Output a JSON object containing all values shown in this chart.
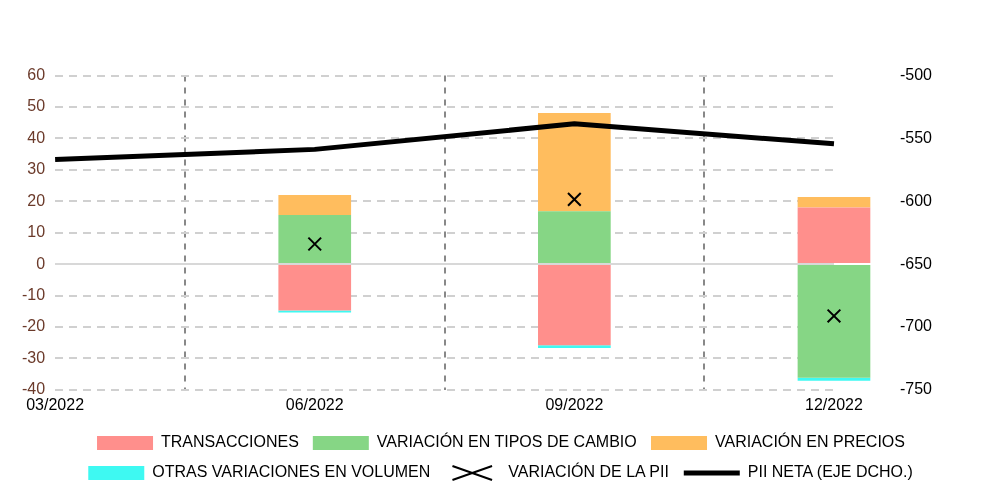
{
  "chart_data": {
    "type": "bar",
    "stacked": true,
    "categories": [
      "03/2022",
      "06/2022",
      "09/2022",
      "12/2022"
    ],
    "series": [
      {
        "name": "TRANSACCIONES",
        "color": "#ff8f8c",
        "values": [
          null,
          -14.8,
          -25.8,
          18
        ]
      },
      {
        "name": "VARIACIÓN EN TIPOS DE CAMBIO",
        "color": "#86d685",
        "values": [
          null,
          15.6,
          16.8,
          -36.2
        ]
      },
      {
        "name": "VARIACIÓN EN PRECIOS",
        "color": "#ffbd5e",
        "values": [
          null,
          6.4,
          31.3,
          3.4
        ]
      },
      {
        "name": "OTRAS VARIACIONES EN VOLUMEN",
        "color": "#3ef9f2",
        "values": [
          null,
          -0.6,
          -0.9,
          -0.9
        ]
      },
      {
        "name": "VARIACIÓN DE LA PII",
        "type": "scatter",
        "marker": "cross",
        "color": "#000000",
        "values": [
          null,
          6.4,
          20.6,
          -16.5
        ]
      },
      {
        "name": "PII NETA (EJE DCHO.)",
        "type": "line",
        "axis": "y2",
        "marker": "none",
        "color": "#000000",
        "values": [
          -566.7,
          -558.7,
          -538.4,
          -554.3
        ]
      }
    ],
    "ylim": [
      -40,
      60
    ],
    "yticks": [
      -40,
      -30,
      -20,
      -10,
      0,
      10,
      20,
      30,
      40,
      50,
      60
    ],
    "y2lim": [
      -750,
      -500
    ],
    "y2ticks": [
      -750,
      -700,
      -650,
      -600,
      -550,
      -500
    ],
    "grid": true,
    "legend": "bottom"
  }
}
